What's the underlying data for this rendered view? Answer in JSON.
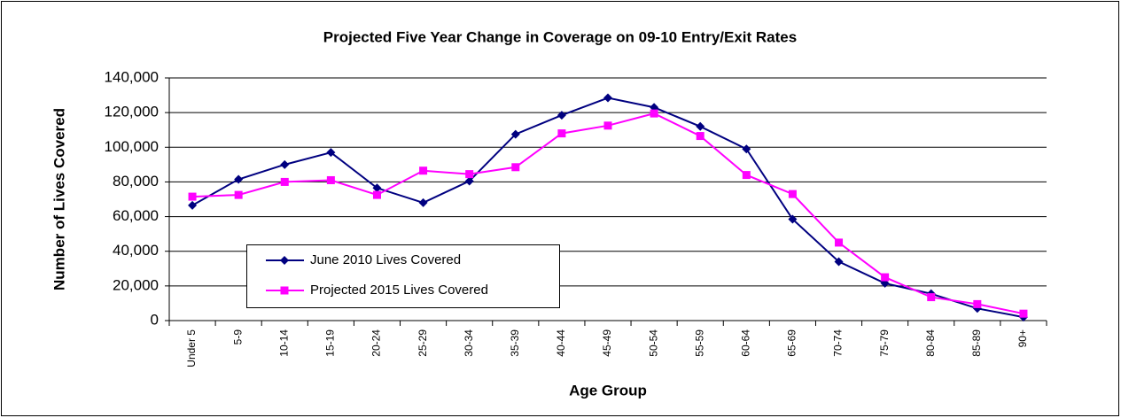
{
  "chart_data": {
    "type": "line",
    "title": "Projected Five Year Change in Coverage on 09-10 Entry/Exit Rates",
    "x_label": "Age Group",
    "y_label": "Number of Lives Covered",
    "categories": [
      "Under 5",
      "5-9",
      "10-14",
      "15-19",
      "20-24",
      "25-29",
      "30-34",
      "35-39",
      "40-44",
      "45-49",
      "50-54",
      "55-59",
      "60-64",
      "65-69",
      "70-74",
      "75-79",
      "80-84",
      "85-89",
      "90+"
    ],
    "series": [
      {
        "name": "June 2010 Lives Covered",
        "color": "#000080",
        "marker": "diamond",
        "values": [
          66500,
          81500,
          90000,
          97000,
          76500,
          68000,
          80500,
          107500,
          118500,
          128500,
          123000,
          112000,
          99000,
          58500,
          34000,
          21500,
          15500,
          7000,
          2000
        ]
      },
      {
        "name": "Projected 2015 Lives Covered",
        "color": "#ff00ff",
        "marker": "square",
        "values": [
          71500,
          72500,
          80000,
          81000,
          72500,
          86500,
          84500,
          88500,
          108000,
          112500,
          119500,
          106500,
          84000,
          73000,
          45000,
          25000,
          13500,
          9500,
          4000
        ]
      }
    ],
    "ylim": [
      0,
      140000
    ],
    "yticks": [
      0,
      {
        "value": 20000,
        "label": "20,000"
      },
      {
        "value": 40000,
        "label": "40,000"
      },
      {
        "value": 60000,
        "label": "60,000"
      },
      {
        "value": 80000,
        "label": "80,000"
      },
      {
        "value": 100000,
        "label": "100,000"
      },
      {
        "value": 120000,
        "label": "120,000"
      },
      {
        "value": 140000,
        "label": "140,000"
      }
    ],
    "grid": true,
    "legend_position": "lower-left"
  }
}
